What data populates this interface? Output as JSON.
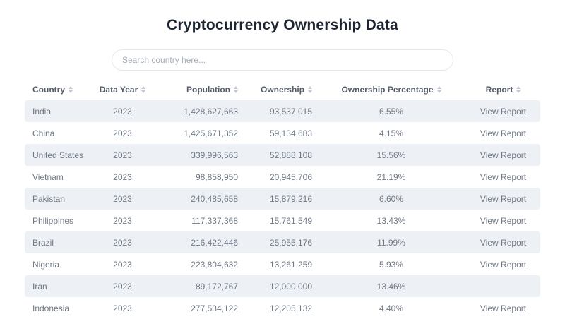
{
  "page": {
    "title": "Cryptocurrency Ownership Data"
  },
  "search": {
    "placeholder": "Search country here..."
  },
  "colors": {
    "title_text": "#1d2531",
    "header_text": "#565d68",
    "cell_text": "#707883",
    "stripe_bg": "#edf1f6",
    "sort_icon": "#c2c8d2",
    "search_border": "#e4e7ec"
  },
  "table": {
    "columns": [
      "Country",
      "Data Year",
      "Population",
      "Ownership",
      "Ownership Percentage",
      "Report"
    ],
    "rows": [
      {
        "country": "India",
        "year": "2023",
        "population": "1,428,627,663",
        "ownership": "93,537,015",
        "percentage": "6.55%",
        "report": "View Report"
      },
      {
        "country": "China",
        "year": "2023",
        "population": "1,425,671,352",
        "ownership": "59,134,683",
        "percentage": "4.15%",
        "report": "View Report"
      },
      {
        "country": "United States",
        "year": "2023",
        "population": "339,996,563",
        "ownership": "52,888,108",
        "percentage": "15.56%",
        "report": "View Report"
      },
      {
        "country": "Vietnam",
        "year": "2023",
        "population": "98,858,950",
        "ownership": "20,945,706",
        "percentage": "21.19%",
        "report": "View Report"
      },
      {
        "country": "Pakistan",
        "year": "2023",
        "population": "240,485,658",
        "ownership": "15,879,216",
        "percentage": "6.60%",
        "report": "View Report"
      },
      {
        "country": "Philippines",
        "year": "2023",
        "population": "117,337,368",
        "ownership": "15,761,549",
        "percentage": "13.43%",
        "report": "View Report"
      },
      {
        "country": "Brazil",
        "year": "2023",
        "population": "216,422,446",
        "ownership": "25,955,176",
        "percentage": "11.99%",
        "report": "View Report"
      },
      {
        "country": "Nigeria",
        "year": "2023",
        "population": "223,804,632",
        "ownership": "13,261,259",
        "percentage": "5.93%",
        "report": "View Report"
      },
      {
        "country": "Iran",
        "year": "2023",
        "population": "89,172,767",
        "ownership": "12,000,000",
        "percentage": "13.46%",
        "report": ""
      },
      {
        "country": "Indonesia",
        "year": "2023",
        "population": "277,534,122",
        "ownership": "12,205,132",
        "percentage": "4.40%",
        "report": "View Report"
      }
    ]
  }
}
